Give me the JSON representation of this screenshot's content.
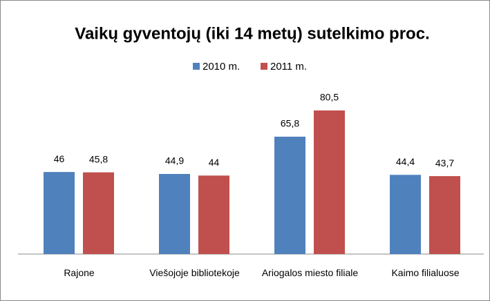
{
  "chart_data": {
    "type": "bar",
    "title": "Vaikų gyventojų (iki 14 metų) sutelkimo proc.",
    "categories": [
      "Rajone",
      "Viešojoje bibliotekoje",
      "Ariogalos miesto filiale",
      "Kaimo filialuose"
    ],
    "series": [
      {
        "name": "2010 m.",
        "color": "#4f81bd",
        "values": [
          46,
          44.9,
          65.8,
          44.4
        ],
        "value_labels": [
          "46",
          "44,9",
          "65,8",
          "44,4"
        ]
      },
      {
        "name": "2011 m.",
        "color": "#c0504d",
        "values": [
          45.8,
          44,
          80.5,
          43.7
        ],
        "value_labels": [
          "45,8",
          "44",
          "80,5",
          "43,7"
        ]
      }
    ],
    "legend": "top"
  }
}
